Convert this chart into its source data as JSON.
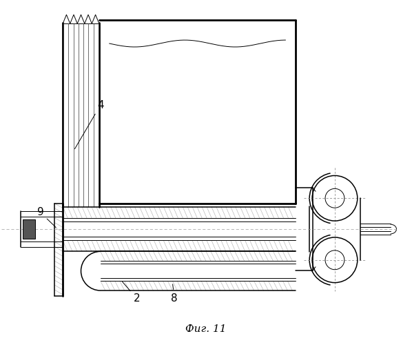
{
  "bg_color": "#ffffff",
  "line_color": "#000000",
  "title": "Фиг. 11",
  "fig_width": 5.98,
  "fig_height": 5.0,
  "dpi": 100
}
